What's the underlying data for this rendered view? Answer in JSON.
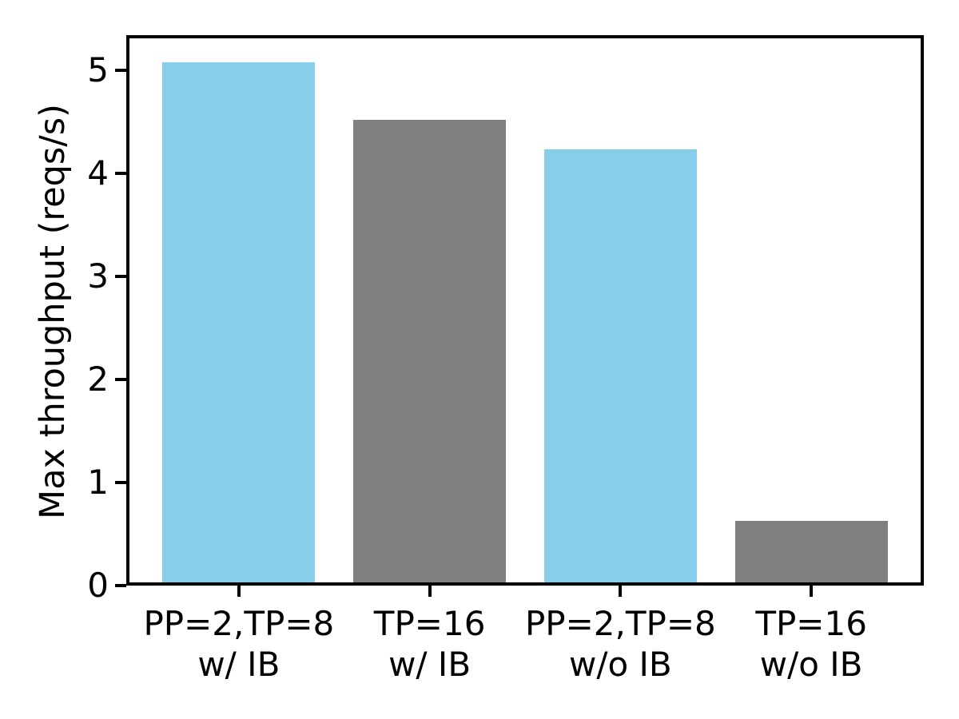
{
  "chart_data": {
    "type": "bar",
    "title": "",
    "xlabel": "",
    "ylabel": "Max throughput (reqs/s)",
    "categories": [
      "PP=2,TP=8\nw/ IB",
      "TP=16\nw/ IB",
      "PP=2,TP=8\nw/o IB",
      "TP=16\nw/o IB"
    ],
    "values": [
      5.08,
      4.52,
      4.23,
      0.63
    ],
    "bar_colors": [
      "#87ceeb",
      "#808080",
      "#87ceeb",
      "#808080"
    ],
    "yticks": [
      0,
      1,
      2,
      3,
      4,
      5
    ],
    "ylim": [
      0,
      5.34
    ],
    "xlim": [
      -0.59,
      3.59
    ],
    "bar_width_units": 0.8,
    "grid": false,
    "legend_position": "none",
    "axis_color": "#000000",
    "text_color": "#000000",
    "background_color": "#ffffff"
  }
}
